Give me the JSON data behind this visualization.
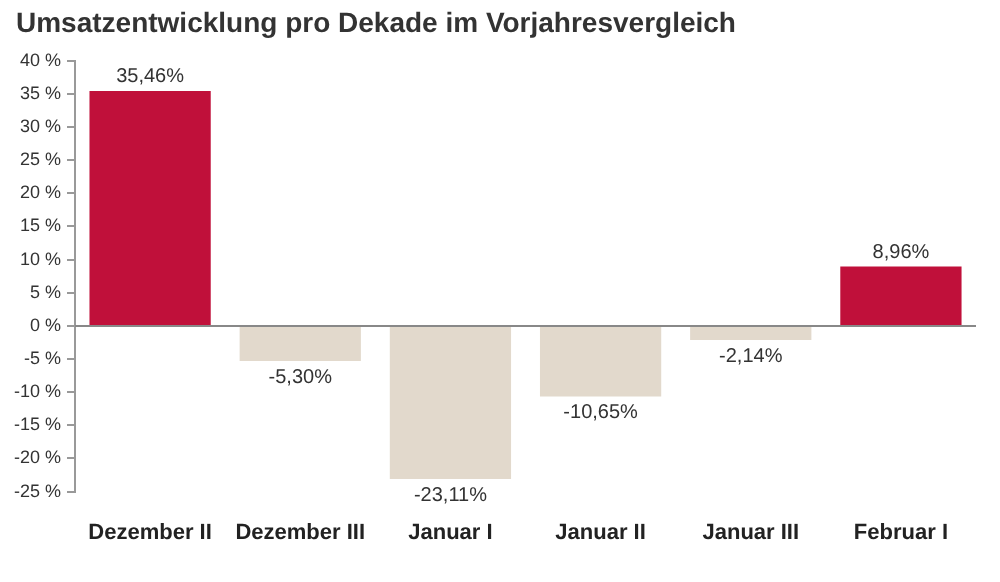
{
  "chart_data": {
    "type": "bar",
    "title": "Umsatzentwicklung pro Dekade im Vorjahresvergleich",
    "categories": [
      "Dezember II",
      "Dezember III",
      "Januar I",
      "Januar II",
      "Januar III",
      "Februar I"
    ],
    "values": [
      35.46,
      -5.3,
      -23.11,
      -10.65,
      -2.14,
      8.96
    ],
    "colors": [
      "#c0103a",
      "#e2d9cc",
      "#e2d9cc",
      "#e2d9cc",
      "#e2d9cc",
      "#c0103a"
    ],
    "value_labels": [
      "35,46%",
      "-5,30%",
      "-23,11%",
      "-10,65%",
      "-2,14%",
      "8,96%"
    ],
    "ylim": [
      -25,
      40
    ],
    "yticks": [
      {
        "value": 40,
        "label": "40 %"
      },
      {
        "value": 35,
        "label": "35 %"
      },
      {
        "value": 30,
        "label": "30 %"
      },
      {
        "value": 25,
        "label": "25 %"
      },
      {
        "value": 20,
        "label": "20 %"
      },
      {
        "value": 15,
        "label": "15 %"
      },
      {
        "value": 10,
        "label": "10 %"
      },
      {
        "value": 5,
        "label": "5 %"
      },
      {
        "value": 0,
        "label": "0 %"
      },
      {
        "value": -5,
        "label": "-5 %"
      },
      {
        "value": -10,
        "label": "-10 %"
      },
      {
        "value": -15,
        "label": "-15 %"
      },
      {
        "value": -20,
        "label": "-20 %"
      },
      {
        "value": -25,
        "label": "-25 %"
      }
    ],
    "ref_lines": [
      {
        "axis": "y",
        "value": 0,
        "color": "#888888"
      }
    ],
    "grid": false,
    "legend": false
  }
}
